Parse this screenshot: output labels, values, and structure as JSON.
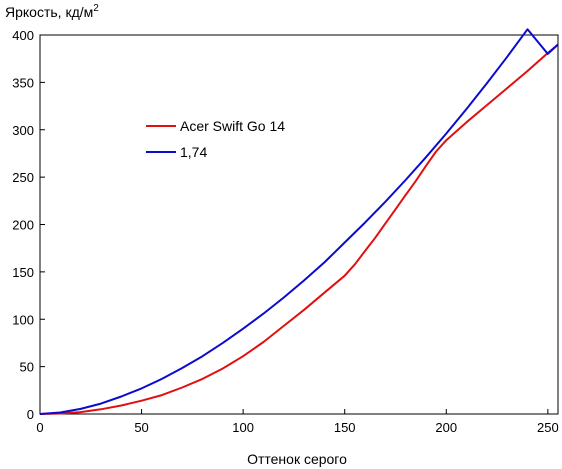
{
  "chart_data": {
    "type": "line",
    "title": "",
    "ylabel": "Яркость, кд/м",
    "ylabel_sup": "2",
    "xlabel": "Оттенок серого",
    "xlim": [
      0,
      255
    ],
    "ylim": [
      0,
      400
    ],
    "x_ticks": [
      "0",
      "50",
      "100",
      "150",
      "200",
      "250"
    ],
    "y_ticks": [
      "0",
      "50",
      "100",
      "150",
      "200",
      "250",
      "300",
      "350",
      "400"
    ],
    "grid": false,
    "legend_position": "upper-left",
    "series": [
      {
        "name": "Acer Swift Go 14",
        "color": "#e01010",
        "x": [
          0,
          10,
          20,
          30,
          40,
          50,
          60,
          70,
          80,
          90,
          100,
          110,
          120,
          130,
          140,
          150,
          155,
          160,
          165,
          170,
          175,
          180,
          185,
          190,
          195,
          200,
          210,
          220,
          230,
          240,
          250,
          255
        ],
        "y": [
          0,
          0.5,
          2,
          5,
          9,
          14,
          20,
          28,
          37,
          48,
          61,
          76,
          93,
          110,
          128,
          146,
          158,
          172,
          186,
          201,
          216,
          231,
          246,
          262,
          277,
          289,
          308,
          326,
          344,
          362,
          381,
          390
        ]
      },
      {
        "name": "1,74",
        "color": "#0b0bd0",
        "x": [
          0,
          10,
          20,
          30,
          40,
          50,
          60,
          70,
          80,
          90,
          100,
          110,
          120,
          130,
          140,
          150,
          160,
          170,
          180,
          190,
          200,
          210,
          220,
          230,
          240,
          250,
          255
        ],
        "y": [
          0,
          1.6,
          5.4,
          11,
          18.5,
          27,
          37,
          48.5,
          61,
          75,
          90,
          106,
          123,
          141,
          160,
          181,
          202,
          224,
          247,
          271,
          296,
          322,
          349,
          377,
          406,
          380,
          390
        ]
      }
    ]
  }
}
